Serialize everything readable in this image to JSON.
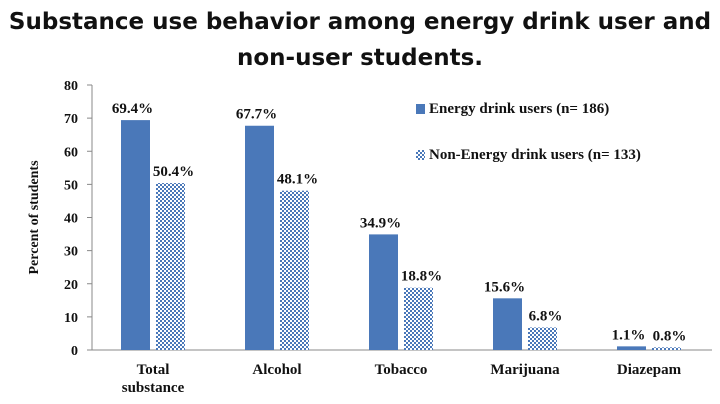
{
  "chart_data": {
    "type": "bar",
    "title_lines": [
      "Substance use behavior among energy drink user and",
      "non-user students."
    ],
    "ylabel": "Percent of students",
    "xlabel": "",
    "ylim": [
      0,
      80
    ],
    "yticks": [
      0,
      10,
      20,
      30,
      40,
      50,
      60,
      70,
      80
    ],
    "grid": false,
    "legend_position": "top-right",
    "categories": [
      [
        "Total",
        "substance"
      ],
      [
        "Alcohol"
      ],
      [
        "Tobacco"
      ],
      [
        "Marijuana"
      ],
      [
        "Diazepam"
      ]
    ],
    "series": [
      {
        "name": "Energy drink users (n= 186)",
        "color": "#4a78b9",
        "fill": "solid",
        "values": [
          69.4,
          67.7,
          34.9,
          15.6,
          1.1
        ],
        "labels": [
          "69.4%",
          "67.7%",
          "34.9%",
          "15.6%",
          "1.1%"
        ]
      },
      {
        "name": "Non-Energy drink users (n= 133)",
        "color": "#4a78b9",
        "fill": "checkered",
        "values": [
          50.4,
          48.1,
          18.8,
          6.8,
          0.8
        ],
        "labels": [
          "50.4%",
          "48.1%",
          "18.8%",
          "6.8%",
          "0.8%"
        ]
      }
    ]
  }
}
